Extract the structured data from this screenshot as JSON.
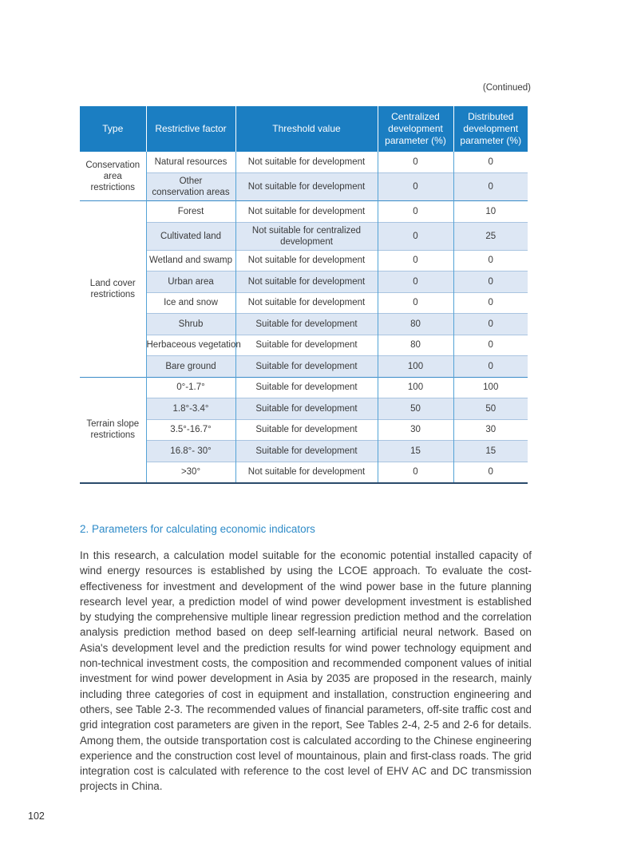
{
  "page": {
    "continued_label": "(Continued)",
    "page_number": "102"
  },
  "colors": {
    "header_bg": "#1b7ec2",
    "header_text": "#ffffff",
    "alt_row_bg": "#dde7f4",
    "row_line": "#a9c4e0",
    "column_line": "#54a3d6",
    "group_line": "#3a8bc8",
    "bottom_line": "#2a4a6b",
    "heading_blue": "#2e8bc8",
    "body_text": "#3d3d3d"
  },
  "table": {
    "headers": [
      "Type",
      "Restrictive factor",
      "Threshold value",
      "Centralized\ndevelopment\nparameter (%)",
      "Distributed\ndevelopment\nparameter (%)"
    ],
    "groups": [
      {
        "type": "Conservation\narea\nrestrictions",
        "rows": [
          {
            "factor": "Natural resources",
            "threshold": "Not suitable for development",
            "centralized": "0",
            "distributed": "0"
          },
          {
            "factor": "Other\nconservation areas",
            "threshold": "Not suitable for development",
            "centralized": "0",
            "distributed": "0"
          }
        ]
      },
      {
        "type": "Land cover\nrestrictions",
        "rows": [
          {
            "factor": "Forest",
            "threshold": "Not suitable for development",
            "centralized": "0",
            "distributed": "10"
          },
          {
            "factor": "Cultivated land",
            "threshold": "Not suitable for centralized\ndevelopment",
            "centralized": "0",
            "distributed": "25"
          },
          {
            "factor": "Wetland and swamp",
            "threshold": "Not suitable for development",
            "centralized": "0",
            "distributed": "0"
          },
          {
            "factor": "Urban area",
            "threshold": "Not suitable for development",
            "centralized": "0",
            "distributed": "0"
          },
          {
            "factor": "Ice and snow",
            "threshold": "Not suitable for development",
            "centralized": "0",
            "distributed": "0"
          },
          {
            "factor": "Shrub",
            "threshold": "Suitable for development",
            "centralized": "80",
            "distributed": "0"
          },
          {
            "factor": "Herbaceous vegetation",
            "threshold": "Suitable for development",
            "centralized": "80",
            "distributed": "0"
          },
          {
            "factor": "Bare ground",
            "threshold": "Suitable for development",
            "centralized": "100",
            "distributed": "0"
          }
        ]
      },
      {
        "type": "Terrain slope\nrestrictions",
        "rows": [
          {
            "factor": "0°-1.7°",
            "threshold": "Suitable for development",
            "centralized": "100",
            "distributed": "100"
          },
          {
            "factor": "1.8°-3.4°",
            "threshold": "Suitable for development",
            "centralized": "50",
            "distributed": "50"
          },
          {
            "factor": "3.5°-16.7°",
            "threshold": "Suitable for development",
            "centralized": "30",
            "distributed": "30"
          },
          {
            "factor": "16.8°- 30°",
            "threshold": "Suitable for development",
            "centralized": "15",
            "distributed": "15"
          },
          {
            "factor": ">30°",
            "threshold": "Not suitable for development",
            "centralized": "0",
            "distributed": "0"
          }
        ]
      }
    ]
  },
  "section": {
    "heading": "2. Parameters for calculating economic indicators",
    "paragraph": "In this research, a calculation model suitable for the economic potential installed capacity of wind energy resources is established by using the LCOE approach. To evaluate the cost-effectiveness for investment and development of the wind power base in the future planning research level year, a prediction model of wind power development investment is established by studying the comprehensive multiple linear regression prediction method and the correlation analysis prediction method based on deep self-learning artificial neural network. Based on Asia's development level and the prediction results for wind power technology equipment and non-technical investment costs, the composition and recommended component values of initial investment for wind power development in Asia by 2035 are proposed in the research, mainly including three categories of cost in equipment and installation, construction engineering and others, see Table 2-3. The recommended values of financial parameters, off-site traffic cost and grid integration cost parameters are given in the report, See Tables 2-4, 2-5 and 2-6 for details. Among them, the outside transportation cost is calculated according to the Chinese engineering experience and the construction cost level of mountainous, plain and first-class roads. The grid integration cost is calculated with reference to the cost level of EHV AC and DC transmission projects in China."
  }
}
